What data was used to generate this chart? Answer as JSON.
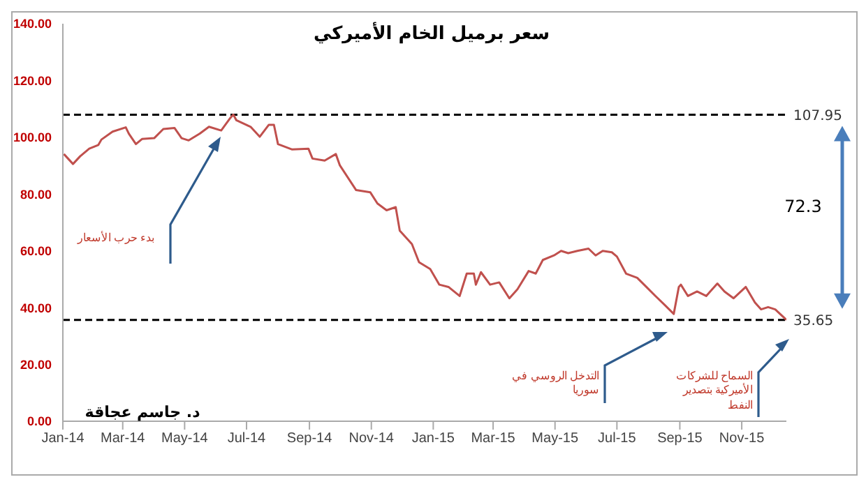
{
  "chart_data": {
    "type": "line",
    "title": "سعر برميل الخام الأميركي",
    "x": [
      "2014-01-02",
      "2014-01-11",
      "2014-01-18",
      "2014-01-27",
      "2014-02-05",
      "2014-02-08",
      "2014-02-19",
      "2014-03-04",
      "2014-03-07",
      "2014-03-14",
      "2014-03-20",
      "2014-04-01",
      "2014-04-10",
      "2014-04-21",
      "2014-04-28",
      "2014-05-05",
      "2014-05-16",
      "2014-05-25",
      "2014-06-06",
      "2014-06-15",
      "2014-06-18",
      "2014-06-21",
      "2014-07-05",
      "2014-07-14",
      "2014-07-23",
      "2014-07-28",
      "2014-08-01",
      "2014-08-15",
      "2014-08-31",
      "2014-09-04",
      "2014-09-16",
      "2014-09-27",
      "2014-10-01",
      "2014-10-17",
      "2014-10-31",
      "2014-11-07",
      "2014-11-16",
      "2014-11-25",
      "2014-11-29",
      "2014-12-11",
      "2014-12-18",
      "2014-12-29",
      "2015-01-07",
      "2015-01-16",
      "2015-01-27",
      "2015-02-03",
      "2015-02-10",
      "2015-02-12",
      "2015-02-17",
      "2015-02-26",
      "2015-03-07",
      "2015-03-17",
      "2015-03-25",
      "2015-04-05",
      "2015-04-12",
      "2015-04-19",
      "2015-04-30",
      "2015-05-07",
      "2015-05-14",
      "2015-05-23",
      "2015-06-03",
      "2015-06-10",
      "2015-06-17",
      "2015-06-26",
      "2015-07-01",
      "2015-07-10",
      "2015-07-21",
      "2015-07-30",
      "2015-08-08",
      "2015-08-17",
      "2015-08-26",
      "2015-08-31",
      "2015-09-02",
      "2015-09-09",
      "2015-09-18",
      "2015-09-27",
      "2015-10-08",
      "2015-10-15",
      "2015-10-24",
      "2015-11-05",
      "2015-11-14",
      "2015-11-20",
      "2015-11-27",
      "2015-12-04",
      "2015-12-15"
    ],
    "series": [
      {
        "color": "#c0504d",
        "values": [
          94.1,
          90.6,
          93.3,
          96.0,
          97.3,
          99.2,
          102.0,
          103.5,
          101.3,
          97.6,
          99.4,
          99.7,
          102.9,
          103.3,
          99.7,
          98.9,
          101.3,
          103.7,
          102.4,
          106.8,
          108,
          106.0,
          103.7,
          100.2,
          104.4,
          104.4,
          97.6,
          95.7,
          96.0,
          92.5,
          91.8,
          94.1,
          90.1,
          81.4,
          80.6,
          76.7,
          74.3,
          75.4,
          67.1,
          62.4,
          56.0,
          53.6,
          48.1,
          47.3,
          44.1,
          52.0,
          52.0,
          48.1,
          52.5,
          48.1,
          48.9,
          43.3,
          46.5,
          52.9,
          52.0,
          56.8,
          58.4,
          60.0,
          59.2,
          60.0,
          60.8,
          58.4,
          60.0,
          59.5,
          58.0,
          52.0,
          50.5,
          47.3,
          44.1,
          41.0,
          37.8,
          47.3,
          48.1,
          44.1,
          45.7,
          44.1,
          48.5,
          45.7,
          43.3,
          47.3,
          41.8,
          39.4,
          40.2,
          39.4,
          35.7
        ]
      }
    ],
    "xlim": [
      "2014-01-01",
      "2015-12-15"
    ],
    "xticks": [
      {
        "value": "2014-01-01",
        "label": "Jan-14"
      },
      {
        "value": "2014-03-01",
        "label": "Mar-14"
      },
      {
        "value": "2014-05-01",
        "label": "May-14"
      },
      {
        "value": "2014-07-01",
        "label": "Jul-14"
      },
      {
        "value": "2014-09-01",
        "label": "Sep-14"
      },
      {
        "value": "2014-11-01",
        "label": "Nov-14"
      },
      {
        "value": "2015-01-01",
        "label": "Jan-15"
      },
      {
        "value": "2015-03-01",
        "label": "Mar-15"
      },
      {
        "value": "2015-05-01",
        "label": "May-15"
      },
      {
        "value": "2015-07-01",
        "label": "Jul-15"
      },
      {
        "value": "2015-09-01",
        "label": "Sep-15"
      },
      {
        "value": "2015-11-01",
        "label": "Nov-15"
      }
    ],
    "ylim": [
      0,
      140
    ],
    "yticks": [
      {
        "value": 0,
        "label": "0.00"
      },
      {
        "value": 20,
        "label": "20.00"
      },
      {
        "value": 40,
        "label": "40.00"
      },
      {
        "value": 60,
        "label": "60.00"
      },
      {
        "value": 80,
        "label": "80.00"
      },
      {
        "value": 100,
        "label": "100.00"
      },
      {
        "value": 120,
        "label": "120.00"
      },
      {
        "value": 140,
        "label": "140.00"
      }
    ],
    "ref_lines": [
      {
        "axis": "y",
        "value": 107.95,
        "label": "107.95",
        "color": "#000000",
        "line_style": "dashed"
      },
      {
        "axis": "y",
        "value": 35.65,
        "label": "35.65",
        "color": "#000000",
        "line_style": "dashed"
      }
    ],
    "annotations": [
      "بدء حرب الأسعار",
      "التدخل الروسي في سوريا",
      "السماح للشركات الأميركية بتصدير النفط",
      "72.3",
      "د. جاسم عجاقة"
    ],
    "grid": false,
    "marker": "none",
    "line_style": "solid"
  }
}
